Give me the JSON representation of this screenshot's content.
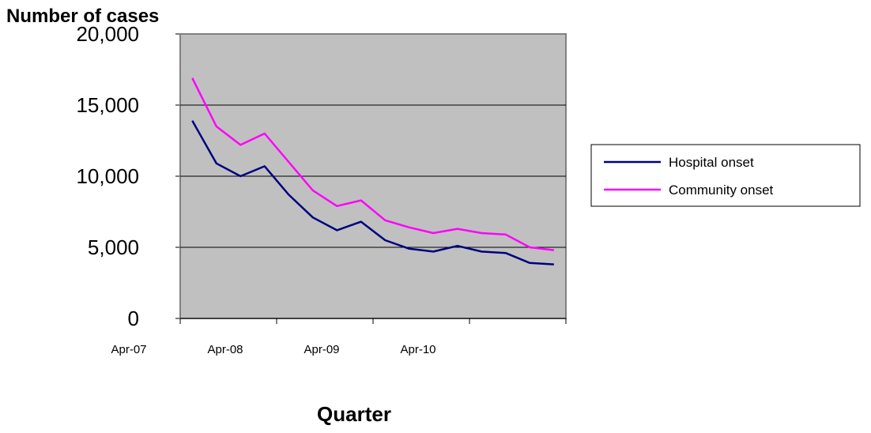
{
  "chart_data": {
    "type": "line",
    "title": "",
    "ylabel": "Number of cases",
    "xlabel": "Quarter",
    "ylim": [
      0,
      20000
    ],
    "yticks": [
      0,
      5000,
      10000,
      15000,
      20000
    ],
    "ytick_labels": [
      "0",
      "5,000",
      "10,000",
      "15,000",
      "20,000"
    ],
    "xtick_labels": [
      "Apr-07",
      "Apr-08",
      "Apr-09",
      "Apr-10"
    ],
    "x": [
      "Q1",
      "Q2",
      "Q3",
      "Q4",
      "Q5",
      "Q6",
      "Q7",
      "Q8",
      "Q9",
      "Q10",
      "Q11",
      "Q12",
      "Q13",
      "Q14",
      "Q15",
      "Q16"
    ],
    "grid": true,
    "legend_position": "right",
    "plot_background": "#c0c0c0",
    "series": [
      {
        "name": "Hospital onset",
        "color": "#000080",
        "values": [
          13900,
          10900,
          10000,
          10700,
          8700,
          7100,
          6200,
          6800,
          5500,
          4900,
          4700,
          5100,
          4700,
          4600,
          3900,
          3800
        ]
      },
      {
        "name": "Community onset",
        "color": "#ff00ff",
        "values": [
          16900,
          13500,
          12200,
          13000,
          11000,
          9000,
          7900,
          8300,
          6900,
          6400,
          6000,
          6300,
          6000,
          5900,
          5000,
          4800
        ]
      }
    ]
  }
}
